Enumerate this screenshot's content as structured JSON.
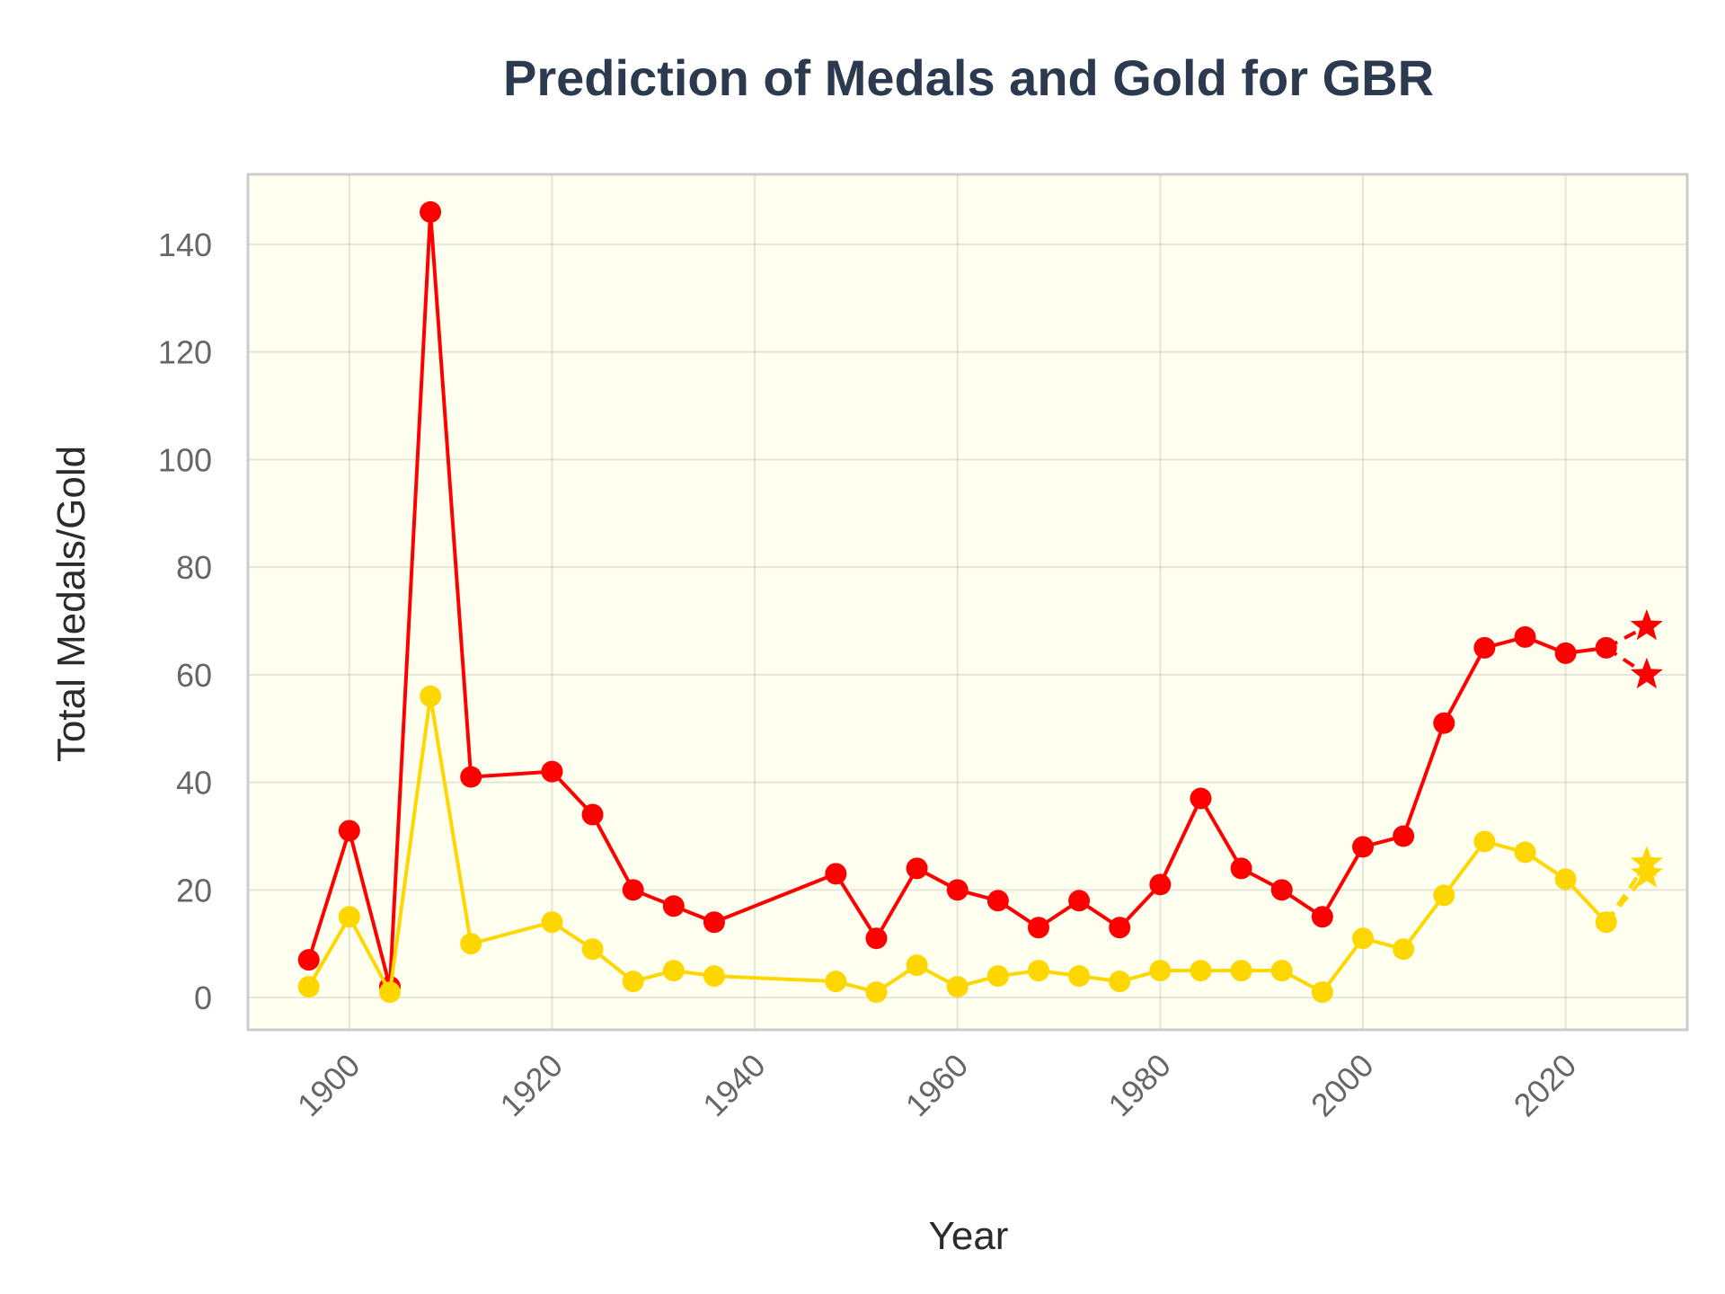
{
  "chart_data": {
    "type": "line",
    "title": "Prediction of Medals and Gold for GBR",
    "xlabel": "Year",
    "ylabel": "Total Medals/Gold",
    "xlim": [
      1890,
      2032
    ],
    "ylim": [
      -6,
      153
    ],
    "xticks": [
      1900,
      1920,
      1940,
      1960,
      1980,
      2000,
      2020
    ],
    "yticks": [
      0,
      20,
      40,
      60,
      80,
      100,
      120,
      140
    ],
    "grid": true,
    "legend": "none",
    "background_color": "#fffff0",
    "frame_color": "#cccccc",
    "series": [
      {
        "color": "#ff0000",
        "x": [
          1896,
          1900,
          1904,
          1908,
          1912,
          1920,
          1924,
          1928,
          1932,
          1936,
          1948,
          1952,
          1956,
          1960,
          1964,
          1968,
          1972,
          1976,
          1980,
          1984,
          1988,
          1992,
          1996,
          2000,
          2004,
          2008,
          2012,
          2016,
          2020,
          2024
        ],
        "values": [
          7,
          31,
          2,
          146,
          41,
          42,
          34,
          20,
          17,
          14,
          23,
          11,
          24,
          20,
          18,
          13,
          18,
          13,
          21,
          37,
          24,
          20,
          15,
          28,
          30,
          51,
          65,
          67,
          64,
          65
        ],
        "predictions": [
          {
            "x": 2028,
            "value": 69
          },
          {
            "x": 2028,
            "value": 60
          }
        ]
      },
      {
        "color": "#ffd700",
        "x": [
          1896,
          1900,
          1904,
          1908,
          1912,
          1920,
          1924,
          1928,
          1932,
          1936,
          1948,
          1952,
          1956,
          1960,
          1964,
          1968,
          1972,
          1976,
          1980,
          1984,
          1988,
          1992,
          1996,
          2000,
          2004,
          2008,
          2012,
          2016,
          2020,
          2024
        ],
        "values": [
          2,
          15,
          1,
          56,
          10,
          14,
          9,
          3,
          5,
          4,
          3,
          1,
          6,
          2,
          4,
          5,
          4,
          3,
          5,
          5,
          5,
          5,
          1,
          11,
          9,
          19,
          29,
          27,
          22,
          14
        ],
        "predictions": [
          {
            "x": 2028,
            "value": 25
          },
          {
            "x": 2028,
            "value": 23
          }
        ]
      }
    ]
  }
}
